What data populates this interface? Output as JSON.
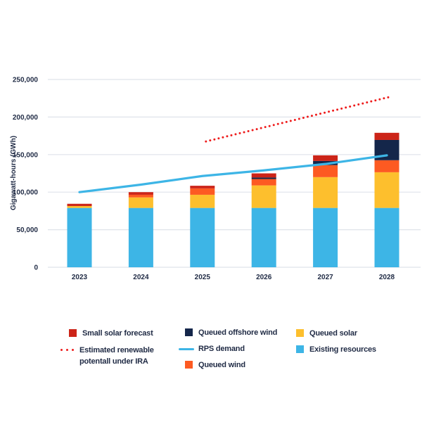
{
  "chart_data": {
    "type": "bar",
    "stacked": true,
    "title": "",
    "xlabel": "",
    "ylabel": "Gigawatt-hours (GWh)",
    "ylim": [
      0,
      250000
    ],
    "yticks": [
      0,
      50000,
      100000,
      150000,
      200000,
      250000
    ],
    "ytick_labels": [
      "0",
      "50,000",
      "100,000",
      "150,000",
      "200,000",
      "250,000"
    ],
    "grid": true,
    "categories": [
      "2023",
      "2024",
      "2025",
      "2026",
      "2027",
      "2028"
    ],
    "series": [
      {
        "name": "Existing resources",
        "type": "bar",
        "color": "#3db5e6",
        "values": [
          79000,
          79000,
          79000,
          79000,
          79000,
          79000
        ]
      },
      {
        "name": "Queued solar",
        "type": "bar",
        "color": "#fdbf2d",
        "values": [
          2500,
          14000,
          17500,
          30000,
          41000,
          47500
        ]
      },
      {
        "name": "Queued wind",
        "type": "bar",
        "color": "#fd5a22",
        "values": [
          0,
          3500,
          8500,
          8500,
          16000,
          16000
        ]
      },
      {
        "name": "Queued offshore wind",
        "type": "bar",
        "color": "#14264a",
        "values": [
          0,
          0,
          0,
          2000,
          5500,
          27000
        ]
      },
      {
        "name": "Small solar forecast",
        "type": "bar",
        "color": "#cc2418",
        "values": [
          3000,
          3500,
          3500,
          5500,
          7500,
          9500
        ]
      },
      {
        "name": "RPS demand",
        "type": "line",
        "color": "#3db5e6",
        "values": [
          100000,
          110000,
          121500,
          129000,
          137500,
          149000
        ]
      },
      {
        "name": "Estimated renewable potentall under IRA",
        "type": "dotted-line",
        "color": "#ee1c1c",
        "x": [
          "2025",
          "2028"
        ],
        "values": [
          167500,
          227000
        ]
      }
    ],
    "legend": {
      "placement": "bottom",
      "items": [
        {
          "label": "Small solar forecast",
          "kind": "square",
          "color": "#cc2418"
        },
        {
          "label": "Estimated renewable potentall under IRA",
          "kind": "dots",
          "color": "#ee1c1c"
        },
        {
          "label": "Queued offshore wind",
          "kind": "square",
          "color": "#14264a"
        },
        {
          "label": "RPS demand",
          "kind": "line",
          "color": "#3db5e6"
        },
        {
          "label": "Queued wind",
          "kind": "square",
          "color": "#fd5a22"
        },
        {
          "label": "Queued solar",
          "kind": "square",
          "color": "#fdbf2d"
        },
        {
          "label": "Existing resources",
          "kind": "square",
          "color": "#3db5e6"
        }
      ]
    }
  },
  "colors": {
    "grid": "#dfe3ea",
    "text": "#1f2a44"
  }
}
